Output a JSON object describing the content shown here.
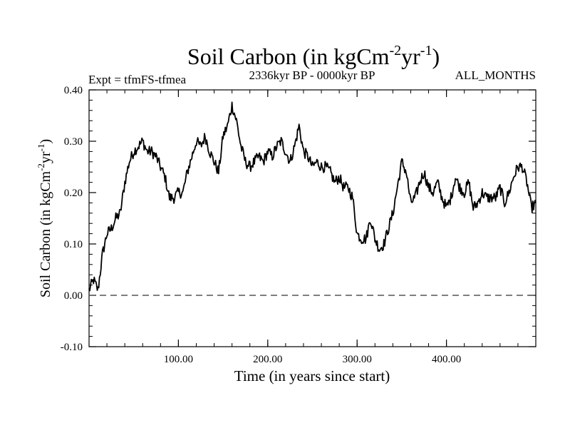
{
  "chart_data": {
    "type": "line",
    "title_main": "Soil Carbon (in kgCm",
    "title_sup1": "-2",
    "title_mid": "yr",
    "title_sup2": "-1",
    "title_end": ")",
    "expt_label": "Expt = tfmFS-tfmea",
    "subtitle": "2336kyr BP - 0000kyr BP",
    "months_label": "ALL_MONTHS",
    "xlabel": "Time (in years since start)",
    "ylabel_main": "Soil Carbon (in kgCm",
    "ylabel_sup1": "-2",
    "ylabel_mid": "yr",
    "ylabel_sup2": "-1",
    "ylabel_end": ")",
    "xlim": [
      0,
      500
    ],
    "ylim": [
      -0.1,
      0.4
    ],
    "x_ticks": [
      100,
      200,
      300,
      400
    ],
    "x_tick_labels": [
      "100.00",
      "200.00",
      "300.00",
      "400.00"
    ],
    "y_ticks": [
      -0.1,
      0.0,
      0.1,
      0.2,
      0.3,
      0.4
    ],
    "y_tick_labels": [
      "-0.10",
      "0.00",
      "0.10",
      "0.20",
      "0.30",
      "0.40"
    ],
    "reference_line": 0.0,
    "series": [
      {
        "name": "Soil Carbon",
        "x": [
          0,
          5,
          10,
          15,
          20,
          25,
          30,
          35,
          40,
          45,
          50,
          55,
          60,
          65,
          70,
          75,
          80,
          85,
          90,
          95,
          100,
          105,
          110,
          115,
          120,
          125,
          130,
          135,
          140,
          145,
          150,
          155,
          160,
          165,
          170,
          175,
          180,
          185,
          190,
          195,
          200,
          205,
          210,
          215,
          220,
          225,
          230,
          235,
          240,
          245,
          250,
          255,
          260,
          265,
          270,
          275,
          280,
          285,
          290,
          295,
          300,
          305,
          310,
          315,
          320,
          325,
          330,
          335,
          340,
          345,
          350,
          355,
          360,
          365,
          370,
          375,
          380,
          385,
          390,
          395,
          400,
          405,
          410,
          415,
          420,
          425,
          430,
          435,
          440,
          445,
          450,
          455,
          460,
          465,
          470,
          475,
          480,
          485,
          490,
          495,
          500
        ],
        "values": [
          0.01,
          0.03,
          0.01,
          0.08,
          0.12,
          0.13,
          0.15,
          0.16,
          0.22,
          0.26,
          0.28,
          0.29,
          0.3,
          0.28,
          0.28,
          0.27,
          0.25,
          0.23,
          0.19,
          0.19,
          0.2,
          0.2,
          0.24,
          0.27,
          0.3,
          0.29,
          0.31,
          0.28,
          0.26,
          0.24,
          0.31,
          0.33,
          0.37,
          0.34,
          0.29,
          0.26,
          0.25,
          0.26,
          0.27,
          0.26,
          0.28,
          0.27,
          0.29,
          0.3,
          0.28,
          0.26,
          0.29,
          0.33,
          0.28,
          0.27,
          0.25,
          0.26,
          0.25,
          0.25,
          0.24,
          0.22,
          0.23,
          0.21,
          0.21,
          0.19,
          0.12,
          0.11,
          0.11,
          0.15,
          0.11,
          0.09,
          0.1,
          0.13,
          0.16,
          0.21,
          0.26,
          0.24,
          0.18,
          0.19,
          0.22,
          0.24,
          0.21,
          0.2,
          0.22,
          0.19,
          0.17,
          0.19,
          0.23,
          0.21,
          0.2,
          0.22,
          0.17,
          0.18,
          0.2,
          0.19,
          0.19,
          0.19,
          0.21,
          0.18,
          0.2,
          0.23,
          0.25,
          0.25,
          0.22,
          0.17,
          0.18
        ]
      }
    ]
  }
}
